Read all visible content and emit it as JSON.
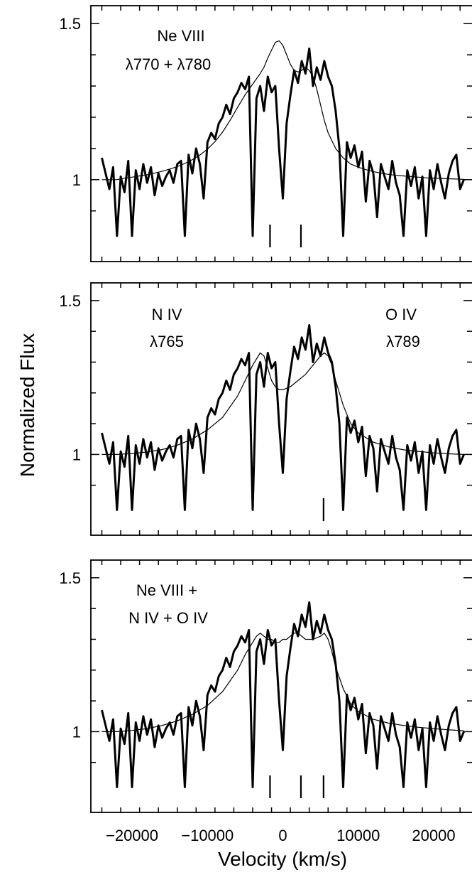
{
  "axis": {
    "xlabel": "Velocity (km/s)",
    "ylabel": "Normalized Flux"
  },
  "chart_data": [
    {
      "type": "line",
      "panel": "top",
      "annotations": [
        "Ne VIII",
        "λ770 + λ780"
      ],
      "xlim": [
        -24000,
        24000
      ],
      "ylim": [
        0.82,
        1.55
      ],
      "yticks": [
        1,
        1.5
      ],
      "ytick_labels": [
        "1",
        "1.5"
      ],
      "xticks": [
        -20000,
        -10000,
        0,
        10000,
        20000
      ],
      "xtick_labels": [],
      "line_markers": [
        -1700,
        2400
      ],
      "series": [
        {
          "style": "data-heavy",
          "x": [
            -24000,
            -23500,
            -23000,
            -22500,
            -22000,
            -21500,
            -21000,
            -20500,
            -20000,
            -19500,
            -19000,
            -18500,
            -18000,
            -17500,
            -17000,
            -16500,
            -16000,
            -15500,
            -15000,
            -14500,
            -14000,
            -13500,
            -13000,
            -12500,
            -12000,
            -11500,
            -11000,
            -10500,
            -10000,
            -9500,
            -9000,
            -8500,
            -8000,
            -7500,
            -7000,
            -6500,
            -6000,
            -5500,
            -5000,
            -4500,
            -4000,
            -3500,
            -3000,
            -2500,
            -2000,
            -1500,
            -1000,
            -500,
            0,
            500,
            1000,
            1500,
            2000,
            2500,
            3000,
            3500,
            4000,
            4500,
            5000,
            5500,
            6000,
            6500,
            7000,
            7500,
            8000,
            8500,
            9000,
            9500,
            10000,
            10500,
            11000,
            11500,
            12000,
            12500,
            13000,
            13500,
            14000,
            14500,
            15000,
            15500,
            16000,
            16500,
            17000,
            17500,
            18000,
            18500,
            19000,
            19500,
            20000,
            20500,
            21000,
            21500,
            22000,
            22500,
            23000,
            23500,
            24000
          ],
          "y": [
            1.07,
            1.02,
            0.97,
            1.04,
            0.82,
            1.01,
            0.96,
            1.06,
            0.82,
            1.03,
            0.97,
            1.05,
            0.99,
            1.04,
            0.95,
            1.02,
            0.98,
            1.01,
            1.03,
            0.99,
            1.05,
            1.06,
            0.82,
            1.08,
            1.02,
            1.1,
            1.05,
            0.94,
            1.12,
            1.15,
            1.13,
            1.18,
            1.2,
            1.24,
            1.21,
            1.26,
            1.28,
            1.31,
            1.29,
            1.33,
            0.82,
            1.26,
            1.3,
            1.22,
            1.33,
            1.28,
            1.3,
            1.1,
            0.94,
            1.18,
            1.27,
            1.35,
            1.31,
            1.38,
            1.34,
            1.42,
            1.3,
            1.36,
            1.32,
            1.38,
            1.33,
            1.3,
            1.22,
            1.1,
            0.82,
            1.12,
            1.07,
            1.11,
            1.04,
            1.09,
            0.93,
            1.06,
            1.02,
            0.88,
            1.05,
            1.01,
            0.97,
            1.06,
            0.99,
            0.95,
            0.82,
            1.03,
            0.98,
            1.04,
            0.94,
            1.01,
            0.82,
            1.03,
            0.97,
            1.05,
            0.99,
            0.94,
            1.02,
            1.06,
            1.08,
            0.97,
            1.0
          ]
        },
        {
          "style": "model-thin",
          "x": [
            -24000,
            -23000,
            -22000,
            -21000,
            -20000,
            -19000,
            -18000,
            -17000,
            -16000,
            -15000,
            -14000,
            -13000,
            -12000,
            -11000,
            -10000,
            -9000,
            -8000,
            -7000,
            -6000,
            -5000,
            -4000,
            -3000,
            -2500,
            -2000,
            -1500,
            -1000,
            -500,
            0,
            500,
            1000,
            1500,
            2000,
            2500,
            3000,
            3500,
            4000,
            4500,
            5000,
            5500,
            6000,
            7000,
            8000,
            9000,
            10000,
            11000,
            12000,
            13000,
            14000,
            15000,
            16000,
            17000,
            18000,
            19000,
            20000,
            21000,
            22000,
            23000,
            24000
          ],
          "y": [
            1.0,
            1.0,
            1.0,
            1.005,
            1.008,
            1.012,
            1.016,
            1.021,
            1.027,
            1.034,
            1.042,
            1.052,
            1.064,
            1.079,
            1.098,
            1.122,
            1.152,
            1.19,
            1.232,
            1.272,
            1.306,
            1.34,
            1.36,
            1.39,
            1.415,
            1.44,
            1.445,
            1.43,
            1.4,
            1.37,
            1.35,
            1.345,
            1.35,
            1.36,
            1.35,
            1.33,
            1.29,
            1.24,
            1.19,
            1.15,
            1.1,
            1.07,
            1.05,
            1.04,
            1.032,
            1.026,
            1.021,
            1.017,
            1.014,
            1.012,
            1.01,
            1.008,
            1.006,
            1.005,
            1.004,
            1.003,
            1.002,
            1.001
          ]
        }
      ]
    },
    {
      "type": "line",
      "panel": "middle",
      "annotations": [
        "N IV",
        "λ765",
        "O IV",
        "λ789"
      ],
      "xlim": [
        -24000,
        24000
      ],
      "ylim": [
        0.82,
        1.55
      ],
      "yticks": [
        1,
        1.5
      ],
      "ytick_labels": [
        "1",
        "1.5"
      ],
      "xticks": [
        -20000,
        -10000,
        0,
        10000,
        20000
      ],
      "xtick_labels": [],
      "line_markers": [
        5400
      ],
      "series": [
        {
          "style": "data-heavy",
          "x": [
            -24000,
            -23500,
            -23000,
            -22500,
            -22000,
            -21500,
            -21000,
            -20500,
            -20000,
            -19500,
            -19000,
            -18500,
            -18000,
            -17500,
            -17000,
            -16500,
            -16000,
            -15500,
            -15000,
            -14500,
            -14000,
            -13500,
            -13000,
            -12500,
            -12000,
            -11500,
            -11000,
            -10500,
            -10000,
            -9500,
            -9000,
            -8500,
            -8000,
            -7500,
            -7000,
            -6500,
            -6000,
            -5500,
            -5000,
            -4500,
            -4000,
            -3500,
            -3000,
            -2500,
            -2000,
            -1500,
            -1000,
            -500,
            0,
            500,
            1000,
            1500,
            2000,
            2500,
            3000,
            3500,
            4000,
            4500,
            5000,
            5500,
            6000,
            6500,
            7000,
            7500,
            8000,
            8500,
            9000,
            9500,
            10000,
            10500,
            11000,
            11500,
            12000,
            12500,
            13000,
            13500,
            14000,
            14500,
            15000,
            15500,
            16000,
            16500,
            17000,
            17500,
            18000,
            18500,
            19000,
            19500,
            20000,
            20500,
            21000,
            21500,
            22000,
            22500,
            23000,
            23500,
            24000
          ],
          "y": [
            1.07,
            1.02,
            0.97,
            1.04,
            0.82,
            1.01,
            0.96,
            1.06,
            0.82,
            1.03,
            0.97,
            1.05,
            0.99,
            1.04,
            0.95,
            1.02,
            0.98,
            1.01,
            1.03,
            0.99,
            1.05,
            1.06,
            0.82,
            1.08,
            1.02,
            1.1,
            1.05,
            0.94,
            1.12,
            1.15,
            1.13,
            1.18,
            1.2,
            1.24,
            1.21,
            1.26,
            1.28,
            1.31,
            1.29,
            1.33,
            0.82,
            1.26,
            1.3,
            1.22,
            1.33,
            1.28,
            1.3,
            1.1,
            0.94,
            1.18,
            1.27,
            1.35,
            1.31,
            1.38,
            1.34,
            1.42,
            1.3,
            1.36,
            1.32,
            1.38,
            1.33,
            1.3,
            1.22,
            1.1,
            0.82,
            1.12,
            1.07,
            1.11,
            1.04,
            1.09,
            0.93,
            1.06,
            1.02,
            0.88,
            1.05,
            1.01,
            0.97,
            1.06,
            0.99,
            0.95,
            0.82,
            1.03,
            0.98,
            1.04,
            0.94,
            1.01,
            0.82,
            1.03,
            0.97,
            1.05,
            0.99,
            0.94,
            1.02,
            1.06,
            1.08,
            0.97,
            1.0
          ]
        },
        {
          "style": "model-thin",
          "x": [
            -24000,
            -22000,
            -20000,
            -18000,
            -16000,
            -14000,
            -12000,
            -10000,
            -8000,
            -6000,
            -5000,
            -4000,
            -3500,
            -3000,
            -2500,
            -2000,
            -1500,
            -1000,
            -500,
            0,
            500,
            1000,
            2000,
            3000,
            4000,
            5000,
            5500,
            6000,
            6500,
            7000,
            8000,
            9000,
            10000,
            12000,
            14000,
            16000,
            18000,
            20000,
            22000,
            24000
          ],
          "y": [
            1.0,
            1.0,
            1.003,
            1.008,
            1.016,
            1.03,
            1.05,
            1.08,
            1.12,
            1.19,
            1.24,
            1.29,
            1.31,
            1.33,
            1.32,
            1.28,
            1.24,
            1.22,
            1.21,
            1.21,
            1.215,
            1.22,
            1.24,
            1.26,
            1.29,
            1.32,
            1.33,
            1.32,
            1.29,
            1.24,
            1.16,
            1.1,
            1.07,
            1.04,
            1.025,
            1.015,
            1.01,
            1.005,
            1.002,
            1.0
          ]
        }
      ]
    },
    {
      "type": "line",
      "panel": "bottom",
      "annotations": [
        "Ne VIII +",
        "N IV + O IV"
      ],
      "xlim": [
        -24000,
        24000
      ],
      "ylim": [
        0.82,
        1.55
      ],
      "yticks": [
        1,
        1.5
      ],
      "ytick_labels": [
        "1",
        "1.5"
      ],
      "xticks": [
        -20000,
        -10000,
        0,
        10000,
        20000
      ],
      "xtick_labels": [
        "−20000",
        "−10000",
        "0",
        "10000",
        "20000"
      ],
      "line_markers": [
        -1700,
        2400,
        5400
      ],
      "series": [
        {
          "style": "data-heavy",
          "x": [
            -24000,
            -23500,
            -23000,
            -22500,
            -22000,
            -21500,
            -21000,
            -20500,
            -20000,
            -19500,
            -19000,
            -18500,
            -18000,
            -17500,
            -17000,
            -16500,
            -16000,
            -15500,
            -15000,
            -14500,
            -14000,
            -13500,
            -13000,
            -12500,
            -12000,
            -11500,
            -11000,
            -10500,
            -10000,
            -9500,
            -9000,
            -8500,
            -8000,
            -7500,
            -7000,
            -6500,
            -6000,
            -5500,
            -5000,
            -4500,
            -4000,
            -3500,
            -3000,
            -2500,
            -2000,
            -1500,
            -1000,
            -500,
            0,
            500,
            1000,
            1500,
            2000,
            2500,
            3000,
            3500,
            4000,
            4500,
            5000,
            5500,
            6000,
            6500,
            7000,
            7500,
            8000,
            8500,
            9000,
            9500,
            10000,
            10500,
            11000,
            11500,
            12000,
            12500,
            13000,
            13500,
            14000,
            14500,
            15000,
            15500,
            16000,
            16500,
            17000,
            17500,
            18000,
            18500,
            19000,
            19500,
            20000,
            20500,
            21000,
            21500,
            22000,
            22500,
            23000,
            23500,
            24000
          ],
          "y": [
            1.07,
            1.02,
            0.97,
            1.04,
            0.82,
            1.01,
            0.96,
            1.06,
            0.82,
            1.03,
            0.97,
            1.05,
            0.99,
            1.04,
            0.95,
            1.02,
            0.98,
            1.01,
            1.03,
            0.99,
            1.05,
            1.06,
            0.82,
            1.08,
            1.02,
            1.1,
            1.05,
            0.94,
            1.12,
            1.15,
            1.13,
            1.18,
            1.2,
            1.24,
            1.21,
            1.26,
            1.28,
            1.31,
            1.29,
            1.33,
            0.82,
            1.26,
            1.3,
            1.22,
            1.33,
            1.28,
            1.3,
            1.1,
            0.94,
            1.18,
            1.27,
            1.35,
            1.31,
            1.38,
            1.34,
            1.42,
            1.3,
            1.36,
            1.32,
            1.38,
            1.33,
            1.3,
            1.22,
            1.1,
            0.82,
            1.12,
            1.07,
            1.11,
            1.04,
            1.09,
            0.93,
            1.06,
            1.02,
            0.88,
            1.05,
            1.01,
            0.97,
            1.06,
            0.99,
            0.95,
            0.82,
            1.03,
            0.98,
            1.04,
            0.94,
            1.01,
            0.82,
            1.03,
            0.97,
            1.05,
            0.99,
            0.94,
            1.02,
            1.06,
            1.08,
            0.97,
            1.0
          ]
        },
        {
          "style": "model-thin",
          "x": [
            -24000,
            -22000,
            -20000,
            -18000,
            -16000,
            -14000,
            -12000,
            -10000,
            -8000,
            -6000,
            -5000,
            -4000,
            -3500,
            -3000,
            -2500,
            -2000,
            -1500,
            -1000,
            -500,
            0,
            500,
            1000,
            1500,
            2000,
            2500,
            3000,
            3500,
            4000,
            5000,
            5500,
            6000,
            6500,
            7000,
            8000,
            9000,
            10000,
            12000,
            14000,
            16000,
            18000,
            20000,
            22000,
            24000
          ],
          "y": [
            1.0,
            1.0,
            1.004,
            1.01,
            1.02,
            1.035,
            1.056,
            1.085,
            1.13,
            1.2,
            1.25,
            1.29,
            1.31,
            1.32,
            1.31,
            1.3,
            1.3,
            1.29,
            1.29,
            1.3,
            1.3,
            1.31,
            1.32,
            1.32,
            1.31,
            1.3,
            1.3,
            1.3,
            1.31,
            1.32,
            1.3,
            1.26,
            1.21,
            1.14,
            1.09,
            1.065,
            1.04,
            1.028,
            1.02,
            1.014,
            1.01,
            1.006,
            1.003
          ]
        }
      ]
    }
  ]
}
